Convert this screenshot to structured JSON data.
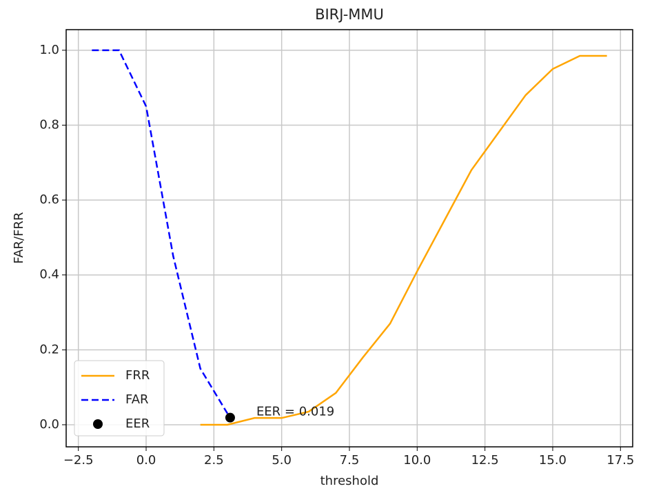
{
  "chart_data": {
    "type": "line",
    "title": "BIRJ-MMU",
    "x_label": "threshold",
    "y_label": "FAR/FRR",
    "xlim": [
      -2.95,
      17.95
    ],
    "ylim": [
      -0.059,
      1.055
    ],
    "xticks": [
      {
        "value": -2.5,
        "label": "−2.5"
      },
      {
        "value": 0,
        "label": "0.0"
      },
      2.5,
      {
        "value": 5,
        "label": "5.0"
      },
      7.5,
      {
        "value": 10,
        "label": "10.0"
      },
      12.5,
      {
        "value": 15,
        "label": "15.0"
      },
      17.5
    ],
    "yticks": [
      {
        "value": 0,
        "label": "0.0"
      },
      0.2,
      0.4,
      0.6,
      0.8,
      {
        "value": 1,
        "label": "1.0"
      }
    ],
    "grid": true,
    "legend": "lower left",
    "series": [
      {
        "name": "FRR",
        "color": "#ffa500",
        "style": "solid",
        "x": [
          2,
          3,
          4,
          5,
          6,
          7,
          8,
          9,
          10,
          11,
          12,
          13,
          14,
          15,
          16,
          17
        ],
        "values": [
          0.0,
          0.0,
          0.018,
          0.018,
          0.035,
          0.085,
          0.18,
          0.27,
          0.41,
          0.545,
          0.68,
          0.78,
          0.88,
          0.95,
          0.985,
          0.985
        ]
      },
      {
        "name": "FAR",
        "color": "#0000ff",
        "style": "dashed",
        "x": [
          -2,
          -1,
          0,
          1,
          2,
          3
        ],
        "values": [
          1.0,
          1.0,
          0.85,
          0.45,
          0.15,
          0.03
        ]
      },
      {
        "name": "EER",
        "color": "#000000",
        "style": "marker",
        "x": [
          3.1
        ],
        "values": [
          0.019
        ]
      }
    ],
    "annotation": "EER = 0.019"
  }
}
